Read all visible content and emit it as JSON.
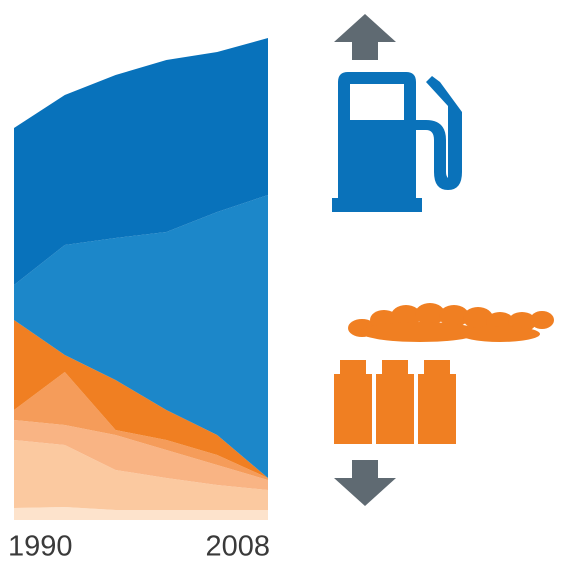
{
  "chart_data": {
    "type": "stacked_area",
    "x": [
      1990,
      1993.6,
      1997.2,
      2000.8,
      2004.4,
      2008
    ],
    "xlim": [
      1990,
      2008
    ],
    "xticks": [
      1990,
      2008
    ],
    "ylim": [
      0,
      500
    ],
    "series": [
      {
        "color": "#fde3cc",
        "values": [
          12,
          13,
          10,
          10,
          10,
          10
        ]
      },
      {
        "color": "#fbc9a0",
        "values": [
          68,
          62,
          40,
          32,
          25,
          20
        ]
      },
      {
        "color": "#f9b484",
        "values": [
          20,
          20,
          35,
          28,
          20,
          10
        ]
      },
      {
        "color": "#f59c5a",
        "values": [
          10,
          53,
          5,
          10,
          10,
          2
        ]
      },
      {
        "color": "#f07f22",
        "values": [
          90,
          17,
          50,
          30,
          20,
          0
        ]
      },
      {
        "color": "#1c87c9",
        "values": [
          35,
          110,
          142,
          178,
          223,
          283
        ]
      },
      {
        "color": "#0872bb",
        "values": [
          157,
          150,
          163,
          172,
          160,
          157
        ]
      }
    ]
  }
}
